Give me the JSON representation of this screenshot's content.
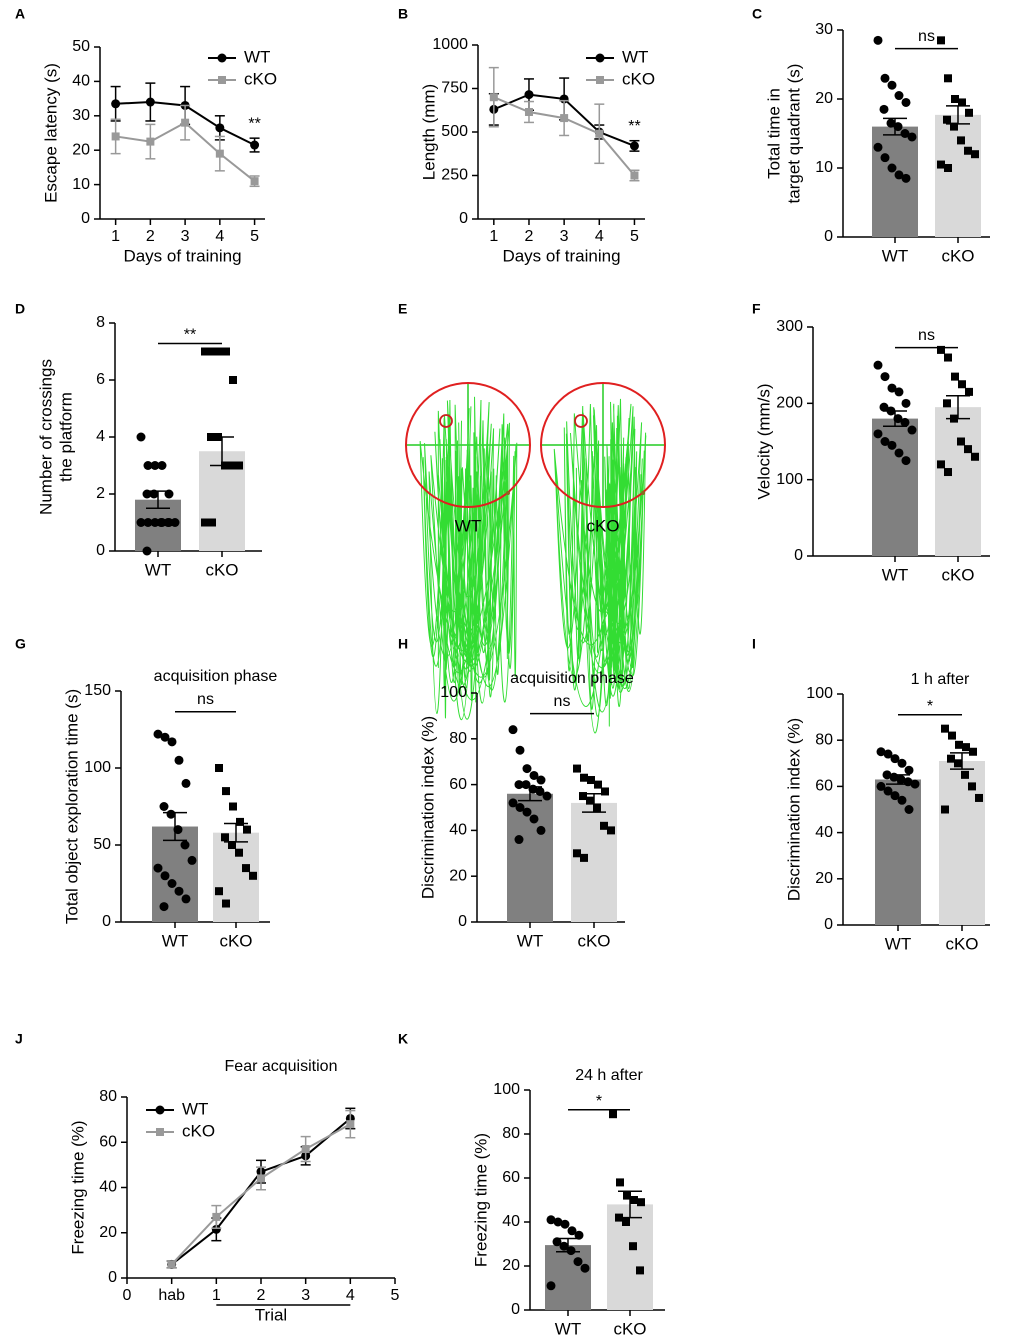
{
  "chart_data": [
    {
      "type": "line",
      "panel": "A",
      "xlabel": "Days of training",
      "ylabel": [
        "Escape latency (s)"
      ],
      "annotation": "**",
      "x": [
        1,
        2,
        3,
        4,
        5
      ],
      "xlim": [
        0.55,
        5.3
      ],
      "xticks": [
        1,
        2,
        3,
        4,
        5
      ],
      "ylim": [
        0,
        50
      ],
      "yticks": [
        0,
        10,
        20,
        30,
        40,
        50
      ],
      "series": [
        {
          "name": "WT",
          "color": "#000000",
          "marker": "circle",
          "values": [
            33.5,
            34,
            33,
            26.5,
            21.5
          ],
          "errors": [
            5,
            5.5,
            5.5,
            3.5,
            2
          ]
        },
        {
          "name": "cKO",
          "color": "#999999",
          "marker": "square",
          "values": [
            24,
            22.5,
            28,
            19,
            11
          ],
          "errors": [
            5,
            5,
            5,
            5,
            1.5
          ]
        }
      ]
    },
    {
      "type": "line",
      "panel": "B",
      "xlabel": "Days of training",
      "ylabel": [
        "Length (mm)"
      ],
      "annotation": "**",
      "x": [
        1,
        2,
        3,
        4,
        5
      ],
      "xlim": [
        0.55,
        5.3
      ],
      "xticks": [
        1,
        2,
        3,
        4,
        5
      ],
      "ylim": [
        0,
        1000
      ],
      "yticks": [
        0,
        250,
        500,
        750,
        1000
      ],
      "series": [
        {
          "name": "WT",
          "color": "#000000",
          "marker": "circle",
          "values": [
            630,
            715,
            690,
            500,
            420
          ],
          "errors": [
            90,
            90,
            120,
            40,
            30
          ]
        },
        {
          "name": "cKO",
          "color": "#999999",
          "marker": "square",
          "values": [
            700,
            615,
            580,
            490,
            250
          ],
          "errors": [
            170,
            60,
            100,
            170,
            30
          ]
        }
      ]
    },
    {
      "type": "bar",
      "panel": "C",
      "ylabel": [
        "Total time in",
        "target quadrant (s)"
      ],
      "annotation": "ns",
      "categories": [
        "WT",
        "cKO"
      ],
      "values": [
        16,
        17.7
      ],
      "errors": [
        1.2,
        1.3
      ],
      "colors": [
        "#808080",
        "#d9d9d9"
      ],
      "markers": [
        "circle",
        "square"
      ],
      "points": [
        [
          28.5,
          23,
          22,
          20.5,
          19.5,
          18.5,
          16.5,
          16,
          15,
          14.5,
          13,
          11.5,
          10,
          9,
          8.5
        ],
        [
          28.5,
          23,
          20,
          19.5,
          18,
          17,
          16,
          14,
          12.5,
          12,
          10.5,
          10
        ]
      ],
      "ylim": [
        0,
        30
      ],
      "yticks": [
        0,
        10,
        20,
        30
      ]
    },
    {
      "type": "bar",
      "panel": "D",
      "ylabel": [
        "Number of crossings",
        "the platform"
      ],
      "annotation": "**",
      "categories": [
        "WT",
        "cKO"
      ],
      "values": [
        1.8,
        3.5
      ],
      "errors": [
        0.3,
        0.5
      ],
      "colors": [
        "#808080",
        "#d9d9d9"
      ],
      "markers": [
        "circle",
        "square"
      ],
      "points": [
        [
          4,
          3,
          3,
          3,
          2,
          2,
          2,
          1,
          1,
          1,
          1,
          1,
          1,
          1,
          1,
          0
        ],
        [
          7,
          7,
          7,
          7,
          6,
          4,
          4,
          3,
          3,
          3,
          1,
          1
        ]
      ],
      "ylim": [
        0,
        8
      ],
      "yticks": [
        0,
        2,
        4,
        6,
        8
      ]
    },
    {
      "type": "track",
      "panel": "E",
      "labels": [
        "WT",
        "cKO"
      ]
    },
    {
      "type": "bar",
      "panel": "F",
      "ylabel": [
        "Velocity (mm/s)"
      ],
      "annotation": "ns",
      "categories": [
        "WT",
        "cKO"
      ],
      "values": [
        180,
        195
      ],
      "errors": [
        10,
        15
      ],
      "colors": [
        "#808080",
        "#d9d9d9"
      ],
      "markers": [
        "circle",
        "square"
      ],
      "points": [
        [
          250,
          235,
          220,
          215,
          200,
          195,
          190,
          180,
          175,
          165,
          160,
          150,
          145,
          135,
          125
        ],
        [
          270,
          260,
          235,
          225,
          215,
          200,
          180,
          150,
          140,
          130,
          120,
          110
        ]
      ],
      "ylim": [
        0,
        300
      ],
      "yticks": [
        0,
        100,
        200,
        300
      ]
    },
    {
      "type": "bar",
      "panel": "G",
      "title": "acquisition phase",
      "ylabel": [
        "Total object exploration time (s)"
      ],
      "annotation": "ns",
      "categories": [
        "WT",
        "cKO"
      ],
      "values": [
        62,
        58
      ],
      "errors": [
        9,
        6
      ],
      "colors": [
        "#808080",
        "#d9d9d9"
      ],
      "markers": [
        "circle",
        "square"
      ],
      "points": [
        [
          122,
          120,
          117,
          105,
          90,
          75,
          70,
          60,
          50,
          40,
          35,
          30,
          25,
          20,
          15,
          10
        ],
        [
          100,
          85,
          75,
          65,
          60,
          55,
          50,
          45,
          35,
          30,
          20,
          12
        ]
      ],
      "ylim": [
        0,
        150
      ],
      "yticks": [
        0,
        50,
        100,
        150
      ]
    },
    {
      "type": "bar",
      "panel": "H",
      "title": "acquisition phase",
      "ylabel": [
        "Discrimination index (%)"
      ],
      "annotation": "ns",
      "categories": [
        "WT",
        "cKO"
      ],
      "values": [
        56,
        52
      ],
      "errors": [
        3,
        4
      ],
      "colors": [
        "#808080",
        "#d9d9d9"
      ],
      "markers": [
        "circle",
        "square"
      ],
      "points": [
        [
          84,
          75,
          67,
          64,
          62,
          60,
          60,
          58,
          57,
          55,
          52,
          50,
          48,
          45,
          40,
          36
        ],
        [
          67,
          63,
          62,
          60,
          57,
          55,
          53,
          50,
          42,
          40,
          30,
          28
        ]
      ],
      "ylim": [
        0,
        100
      ],
      "yticks": [
        0,
        20,
        40,
        60,
        80,
        100
      ]
    },
    {
      "type": "bar",
      "panel": "I",
      "title": "1 h after",
      "ylabel": [
        "Discrimination index (%)"
      ],
      "annotation": "*",
      "categories": [
        "WT",
        "cKO"
      ],
      "values": [
        63,
        71
      ],
      "errors": [
        2,
        3.5
      ],
      "colors": [
        "#808080",
        "#d9d9d9"
      ],
      "markers": [
        "circle",
        "square"
      ],
      "points": [
        [
          75,
          74,
          72,
          70,
          67,
          65,
          64,
          63,
          62,
          61,
          60,
          58,
          56,
          54,
          50
        ],
        [
          85,
          82,
          78,
          77,
          75,
          72,
          70,
          65,
          60,
          55,
          50
        ]
      ],
      "ylim": [
        0,
        100
      ],
      "yticks": [
        0,
        20,
        40,
        60,
        80,
        100
      ]
    },
    {
      "type": "line",
      "panel": "J",
      "title": "Fear acquisition",
      "xlabel": "Trial",
      "ylabel": [
        "Freezing time (%)"
      ],
      "x": [
        1,
        2,
        3,
        4,
        5
      ],
      "xlim": [
        0,
        6
      ],
      "xticks": [
        0,
        {
          "value": 1,
          "label": "hab"
        },
        {
          "value": 2,
          "label": "1"
        },
        {
          "value": 3,
          "label": "2"
        },
        {
          "value": 4,
          "label": "3"
        },
        {
          "value": 5,
          "label": "4"
        },
        {
          "value": 6,
          "label": "5"
        }
      ],
      "ylim": [
        0,
        80
      ],
      "yticks": [
        0,
        20,
        40,
        60,
        80
      ],
      "series": [
        {
          "name": "WT",
          "color": "#000000",
          "marker": "circle",
          "values": [
            6,
            21.5,
            47,
            54,
            70.5
          ],
          "errors": [
            1.5,
            5,
            5,
            4,
            4.5
          ]
        },
        {
          "name": "cKO",
          "color": "#999999",
          "marker": "square",
          "values": [
            6,
            27,
            44,
            57,
            68
          ],
          "errors": [
            1.5,
            5,
            5,
            5.5,
            6
          ]
        }
      ]
    },
    {
      "type": "bar",
      "panel": "K",
      "title": "24 h after",
      "ylabel": [
        "Freezing time (%)"
      ],
      "annotation": "*",
      "categories": [
        "WT",
        "cKO"
      ],
      "values": [
        29.5,
        48
      ],
      "errors": [
        3,
        6
      ],
      "colors": [
        "#808080",
        "#d9d9d9"
      ],
      "markers": [
        "circle",
        "square"
      ],
      "points": [
        [
          41,
          40,
          39,
          36,
          34,
          31,
          29,
          27,
          22,
          19,
          11
        ],
        [
          89,
          58,
          52,
          50,
          49,
          42,
          40,
          29,
          18
        ]
      ],
      "ylim": [
        0,
        100
      ],
      "yticks": [
        0,
        20,
        40,
        60,
        80,
        100
      ]
    }
  ]
}
